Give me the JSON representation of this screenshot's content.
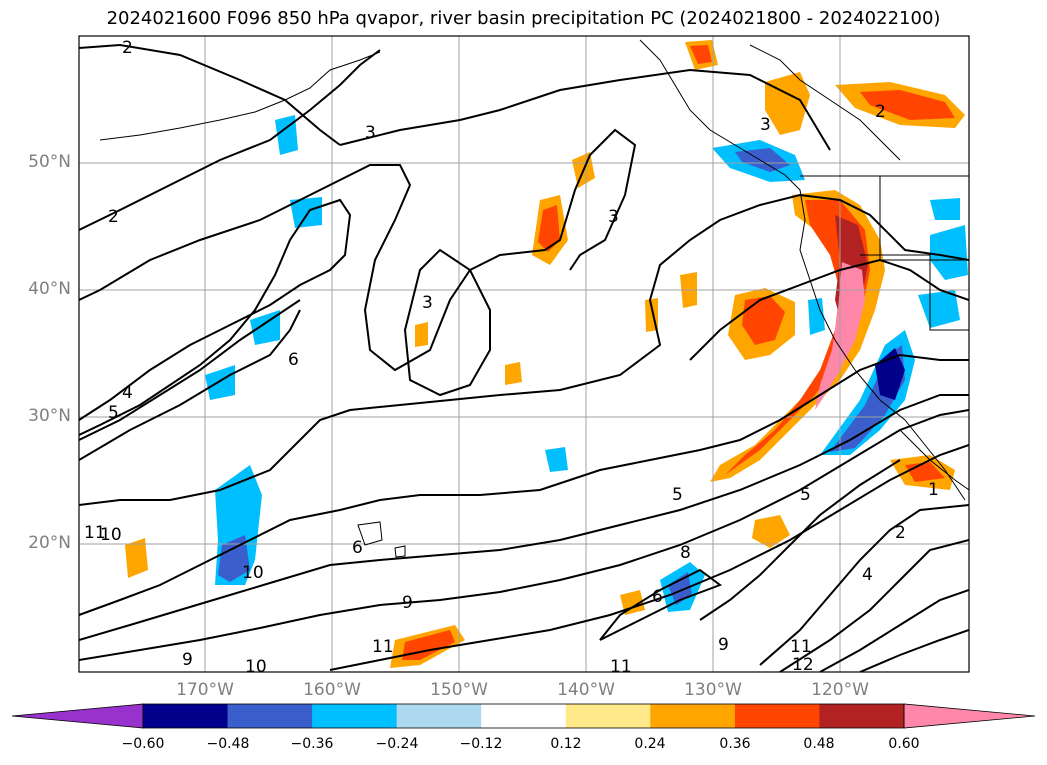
{
  "title": "2024021600 F096 850 hPa qvapor, river basin precipitation PC (2024021800 - 2024022100)",
  "lat_labels": [
    "50°N",
    "40°N",
    "30°N",
    "20°N"
  ],
  "lon_labels": [
    "170°W",
    "160°W",
    "150°W",
    "140°W",
    "130°W",
    "120°W"
  ],
  "colorbar": {
    "ticks": [
      "−0.60",
      "−0.48",
      "−0.36",
      "−0.24",
      "−0.12",
      "0.12",
      "0.24",
      "0.36",
      "0.48",
      "0.60"
    ],
    "colors": [
      "#9932cc",
      "#00008b",
      "#3a5fcd",
      "#00bfff",
      "#add8f0",
      "#ffffff",
      "#ffe88a",
      "#ffa500",
      "#ff4500",
      "#b22222",
      "#ff88aa"
    ],
    "extend": "both"
  },
  "contour_labels": [
    "2",
    "2",
    "2",
    "3",
    "3",
    "3",
    "3",
    "4",
    "5",
    "5",
    "6",
    "6",
    "8",
    "9",
    "9",
    "10",
    "10",
    "10",
    "11",
    "11",
    "11",
    "12",
    "2",
    "4",
    "5",
    "6",
    "9",
    "11",
    "1"
  ],
  "colors": {
    "contour": "#000000",
    "grid": "#a0a0a0",
    "coast": "#000000"
  }
}
